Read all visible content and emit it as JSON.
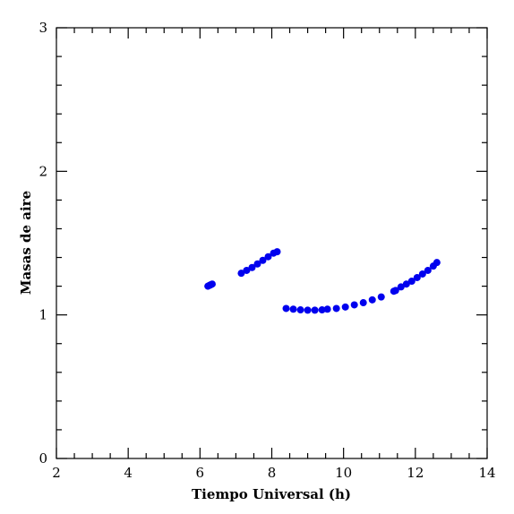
{
  "chart_data": {
    "type": "scatter",
    "xlabel": "Tiempo Universal (h)",
    "ylabel": "Masas de aire",
    "xlim": [
      2,
      14
    ],
    "ylim": [
      0,
      3
    ],
    "x_ticks": [
      2,
      4,
      6,
      8,
      10,
      12,
      14
    ],
    "y_ticks": [
      0,
      1,
      2,
      3
    ],
    "x_tick_labels": [
      "2",
      "4",
      "6",
      "8",
      "10",
      "12",
      "14"
    ],
    "y_tick_labels": [
      "0",
      "1",
      "2",
      "3"
    ],
    "grid": false,
    "legend": "none",
    "marker_color": "#0000ee",
    "series": [
      {
        "x": [
          6.22,
          6.26,
          6.3,
          6.34
        ],
        "y": [
          1.2,
          1.205,
          1.21,
          1.215
        ]
      },
      {
        "x": [
          7.15,
          7.3,
          7.45,
          7.6,
          7.75,
          7.9,
          8.05,
          8.15
        ],
        "y": [
          1.29,
          1.31,
          1.33,
          1.355,
          1.38,
          1.405,
          1.43,
          1.44
        ]
      },
      {
        "x": [
          8.4,
          8.6,
          8.8,
          9.0,
          9.2,
          9.4
        ],
        "y": [
          1.045,
          1.04,
          1.035,
          1.033,
          1.033,
          1.035
        ]
      },
      {
        "x": [
          9.55,
          9.8,
          10.05,
          10.3,
          10.55,
          10.8,
          11.05
        ],
        "y": [
          1.04,
          1.045,
          1.055,
          1.07,
          1.085,
          1.105,
          1.125
        ]
      },
      {
        "x": [
          11.4,
          11.45
        ],
        "y": [
          1.165,
          1.17
        ]
      },
      {
        "x": [
          11.6,
          11.75,
          11.9,
          12.05,
          12.2,
          12.35,
          12.5,
          12.6
        ],
        "y": [
          1.195,
          1.215,
          1.235,
          1.26,
          1.285,
          1.31,
          1.34,
          1.365
        ]
      }
    ]
  }
}
